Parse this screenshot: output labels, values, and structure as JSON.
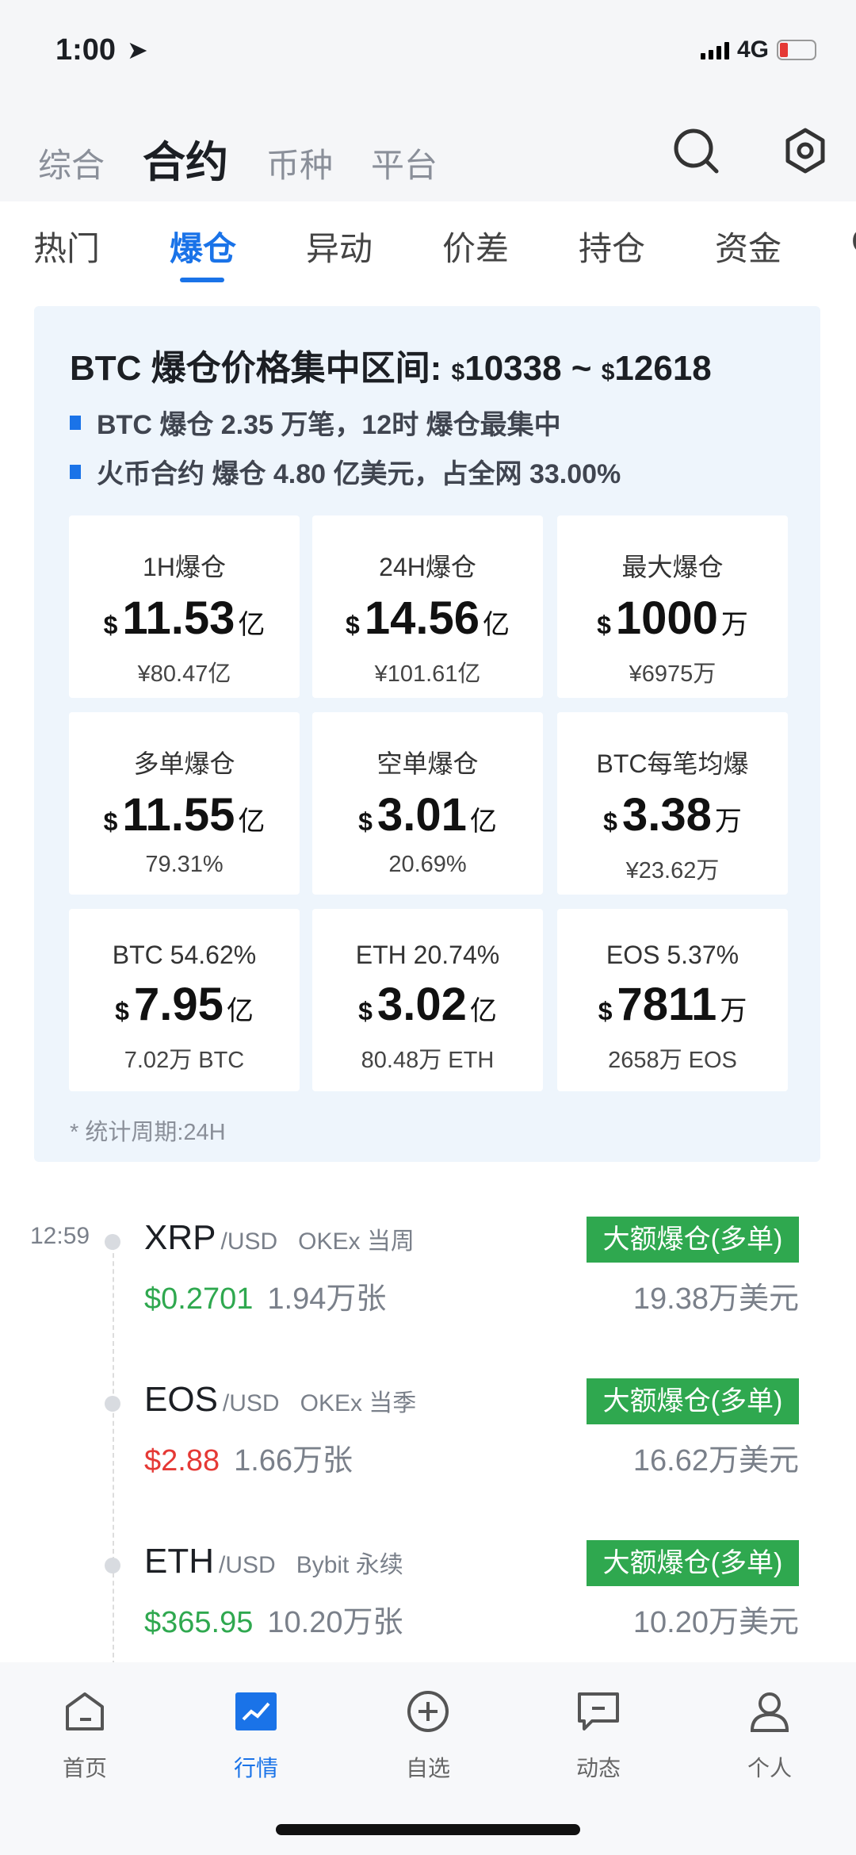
{
  "status": {
    "time": "1:00",
    "network": "4G"
  },
  "main_tabs": [
    {
      "label": "综合"
    },
    {
      "label": "合约"
    },
    {
      "label": "币种"
    },
    {
      "label": "平台"
    }
  ],
  "sub_tabs": [
    {
      "label": "热门"
    },
    {
      "label": "爆仓"
    },
    {
      "label": "异动"
    },
    {
      "label": "价差"
    },
    {
      "label": "持仓"
    },
    {
      "label": "资金"
    },
    {
      "label": "C"
    }
  ],
  "summary": {
    "title": "BTC 爆仓价格集中区间: ",
    "low_cur": "$",
    "low": "10338",
    "sep": " ~ ",
    "high_cur": "$",
    "high": "12618",
    "bullets": [
      "BTC 爆仓 2.35 万笔，12时 爆仓最集中",
      "火币合约 爆仓 4.80 亿美元，占全网 33.00%"
    ],
    "cells": [
      {
        "label": "1H爆仓",
        "cur": "$",
        "value": "11.53",
        "unit": "亿",
        "sub": "¥80.47亿"
      },
      {
        "label": "24H爆仓",
        "cur": "$",
        "value": "14.56",
        "unit": "亿",
        "sub": "¥101.61亿"
      },
      {
        "label": "最大爆仓",
        "cur": "$",
        "value": "1000",
        "unit": "万",
        "sub": "¥6975万"
      },
      {
        "label": "多单爆仓",
        "cur": "$",
        "value": "11.55",
        "unit": "亿",
        "sub": "79.31%"
      },
      {
        "label": "空单爆仓",
        "cur": "$",
        "value": "3.01",
        "unit": "亿",
        "sub": "20.69%"
      },
      {
        "label": "BTC每笔均爆",
        "cur": "$",
        "value": "3.38",
        "unit": "万",
        "sub": "¥23.62万"
      },
      {
        "label": "BTC 54.62%",
        "cur": "$",
        "value": "7.95",
        "unit": "亿",
        "sub": "7.02万 BTC"
      },
      {
        "label": "ETH 20.74%",
        "cur": "$",
        "value": "3.02",
        "unit": "亿",
        "sub": "80.48万 ETH"
      },
      {
        "label": "EOS 5.37%",
        "cur": "$",
        "value": "7811",
        "unit": "万",
        "sub": "2658万 EOS"
      }
    ],
    "footnote": "* 统计周期:24H"
  },
  "colors": {
    "accent": "#1a73e8",
    "up": "#2fa84f",
    "down": "#e53935",
    "badge": "#2fa84f"
  },
  "feed": [
    {
      "time": "12:59",
      "symbol": "XRP",
      "pair": "/USD",
      "exchange": "OKEx 当周",
      "price": "$0.2701",
      "price_color": "#2fa84f",
      "qty": "1.94万张",
      "badge": "大额爆仓(多单)",
      "amount": "19.38万美元"
    },
    {
      "time": "",
      "symbol": "EOS",
      "pair": "/USD",
      "exchange": "OKEx 当季",
      "price": "$2.88",
      "price_color": "#e53935",
      "qty": "1.66万张",
      "badge": "大额爆仓(多单)",
      "amount": "16.62万美元"
    },
    {
      "time": "",
      "symbol": "ETH",
      "pair": "/USD",
      "exchange": "Bybit 永续",
      "price": "$365.95",
      "price_color": "#2fa84f",
      "qty": "10.20万张",
      "badge": "大额爆仓(多单)",
      "amount": "10.20万美元"
    }
  ],
  "tabbar": [
    {
      "label": "首页",
      "icon": "home-icon"
    },
    {
      "label": "行情",
      "icon": "chart-icon"
    },
    {
      "label": "自选",
      "icon": "plus-circle-icon"
    },
    {
      "label": "动态",
      "icon": "message-icon"
    },
    {
      "label": "个人",
      "icon": "person-icon"
    }
  ]
}
